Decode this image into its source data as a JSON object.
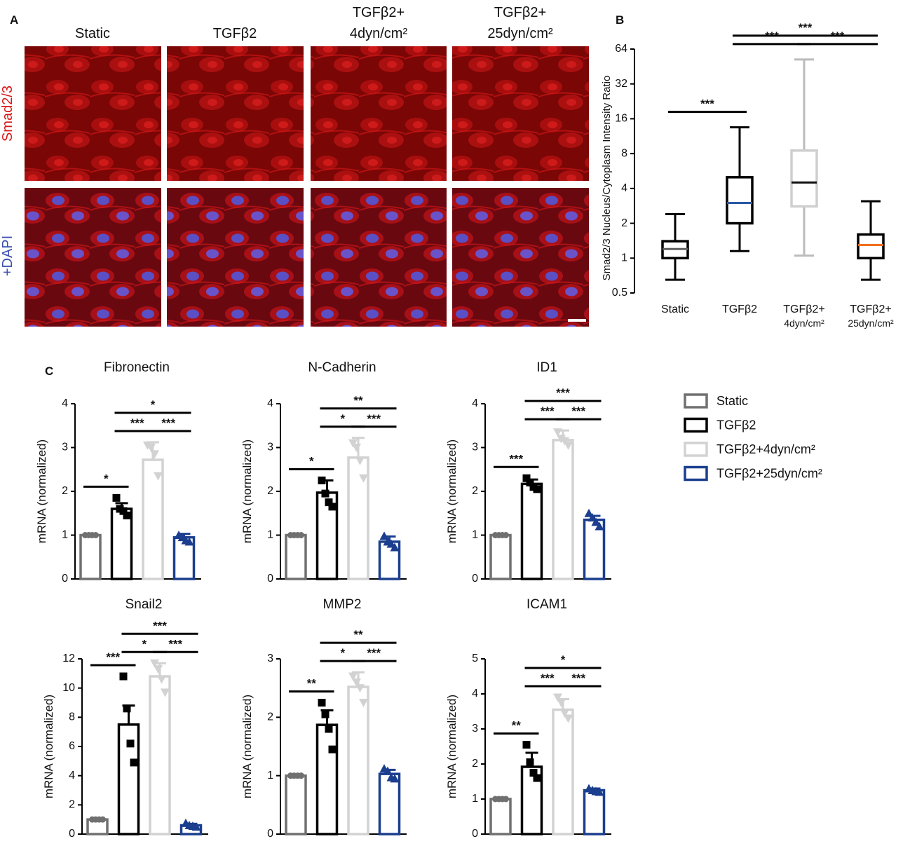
{
  "image_panel": {
    "label": "A",
    "columns": [
      [
        "Static"
      ],
      [
        "TGFβ2"
      ],
      [
        "TGFβ2+",
        "4dyn/cm²"
      ],
      [
        "TGFβ2+",
        "25dyn/cm²"
      ]
    ],
    "rows": [
      "Smad2/3",
      "+DAPI"
    ]
  },
  "legend": {
    "items": [
      {
        "name": "Static",
        "color": "#707070",
        "marker": "circle"
      },
      {
        "name": "TGFβ2",
        "color": "#000000",
        "marker": "square"
      },
      {
        "name": "TGFβ2+4dyn/cm²",
        "color": "#d2d2d2",
        "marker": "triangle-down"
      },
      {
        "name": "TGFβ2+25dyn/cm²",
        "color": "#1b3e8e",
        "marker": "triangle-up"
      }
    ]
  },
  "chart_data": [
    {
      "type": "box",
      "panel": "B",
      "y_label": "Smad2/3 Nucleus/Cytoplasm Intensity Ratio",
      "categories": [
        [
          "Static"
        ],
        [
          "TGFβ2"
        ],
        [
          "TGFβ2+",
          "4dyn/cm²"
        ],
        [
          "TGFβ2+",
          "25dyn/cm²"
        ]
      ],
      "colors": [
        "#606060",
        "#2a58a6",
        "#111111",
        "#f0701e"
      ],
      "stats": [
        {
          "min": 0.65,
          "q1": 1.0,
          "median": 1.2,
          "q3": 1.4,
          "max": 2.4
        },
        {
          "min": 1.15,
          "q1": 2.0,
          "median": 3.0,
          "q3": 5.0,
          "max": 13.5
        },
        {
          "min": 1.05,
          "q1": 2.8,
          "median": 4.5,
          "q3": 8.5,
          "max": 52
        },
        {
          "min": 0.65,
          "q1": 1.0,
          "median": 1.3,
          "q3": 1.6,
          "max": 3.1
        }
      ],
      "log_base": 2,
      "ylim": [
        0.5,
        64
      ],
      "yticks": [
        0.5,
        1,
        2,
        4,
        8,
        16,
        32,
        64
      ],
      "brackets": [
        {
          "between": [
            0,
            1
          ],
          "label": "***"
        },
        {
          "between": [
            1,
            2
          ],
          "label": "***"
        },
        {
          "between": [
            2,
            3
          ],
          "label": "***"
        },
        {
          "between": [
            1,
            3
          ],
          "label": "***"
        }
      ]
    },
    {
      "type": "bar",
      "panel": "C",
      "title": "Fibronectin",
      "y_label": "mRNA (normalized)",
      "values": [
        1,
        1.6,
        2.72,
        0.95
      ],
      "errors": [
        0,
        0.13,
        0.4,
        0.08
      ],
      "points": [
        [
          1,
          1,
          1,
          1
        ],
        [
          1.85,
          1.6,
          1.55,
          1.45
        ],
        [
          3.05,
          3.0,
          2.85,
          2.35
        ],
        [
          1.0,
          0.95,
          0.88,
          0.85
        ]
      ],
      "ylim": [
        0,
        4
      ],
      "yticks": [
        0,
        1,
        2,
        3,
        4
      ],
      "brackets": [
        {
          "between": [
            0,
            1
          ],
          "label": "*"
        },
        {
          "between": [
            1,
            2
          ],
          "label": "***"
        },
        {
          "between": [
            2,
            3
          ],
          "label": "***"
        },
        {
          "between": [
            1,
            3
          ],
          "label": "*"
        }
      ]
    },
    {
      "type": "bar",
      "title": "N-Cadherin",
      "y_label": "mRNA (normalized)",
      "values": [
        1,
        1.97,
        2.77,
        0.85
      ],
      "errors": [
        0,
        0.28,
        0.45,
        0.12
      ],
      "points": [
        [
          1,
          1,
          1,
          1
        ],
        [
          2.25,
          1.95,
          1.75,
          1.65
        ],
        [
          3.1,
          3.0,
          2.7,
          2.3
        ],
        [
          0.98,
          0.85,
          0.8,
          0.72
        ]
      ],
      "ylim": [
        0,
        4
      ],
      "yticks": [
        0,
        1,
        2,
        3,
        4
      ],
      "brackets": [
        {
          "between": [
            0,
            1
          ],
          "label": "*"
        },
        {
          "between": [
            1,
            2
          ],
          "label": "*"
        },
        {
          "between": [
            2,
            3
          ],
          "label": "***"
        },
        {
          "between": [
            1,
            3
          ],
          "label": "**"
        }
      ]
    },
    {
      "type": "bar",
      "title": "ID1",
      "y_label": "mRNA (normalized)",
      "values": [
        1,
        2.17,
        3.17,
        1.35
      ],
      "errors": [
        0,
        0.1,
        0.22,
        0.09
      ],
      "points": [
        [
          1,
          1,
          1,
          1
        ],
        [
          2.3,
          2.2,
          2.1,
          2.05
        ],
        [
          3.35,
          3.2,
          3.15,
          3.05
        ],
        [
          1.5,
          1.4,
          1.3,
          1.2
        ]
      ],
      "ylim": [
        0,
        4
      ],
      "yticks": [
        0,
        1,
        2,
        3,
        4
      ],
      "brackets": [
        {
          "between": [
            0,
            1
          ],
          "label": "***"
        },
        {
          "between": [
            1,
            2
          ],
          "label": "***"
        },
        {
          "between": [
            2,
            3
          ],
          "label": "***"
        },
        {
          "between": [
            1,
            3
          ],
          "label": "***"
        }
      ]
    },
    {
      "type": "bar",
      "title": "Snail2",
      "y_label": "mRNA (normalized)",
      "values": [
        1,
        7.5,
        10.8,
        0.6
      ],
      "errors": [
        0,
        1.3,
        0.9,
        0.1
      ],
      "points": [
        [
          1,
          1,
          1,
          1
        ],
        [
          10.8,
          8.6,
          6.2,
          4.9
        ],
        [
          11.7,
          11.3,
          10.6,
          9.7
        ],
        [
          0.75,
          0.6,
          0.55,
          0.5
        ]
      ],
      "ylim": [
        0,
        12
      ],
      "yticks": [
        0,
        2,
        4,
        6,
        8,
        10,
        12
      ],
      "brackets": [
        {
          "between": [
            0,
            1
          ],
          "label": "***"
        },
        {
          "between": [
            1,
            2
          ],
          "label": "*"
        },
        {
          "between": [
            2,
            3
          ],
          "label": "***"
        },
        {
          "between": [
            1,
            3
          ],
          "label": "***"
        }
      ]
    },
    {
      "type": "bar",
      "title": "MMP2",
      "y_label": "mRNA (normalized)",
      "values": [
        1,
        1.87,
        2.52,
        1.03
      ],
      "errors": [
        0,
        0.25,
        0.25,
        0.07
      ],
      "points": [
        [
          1,
          1,
          1,
          1
        ],
        [
          2.25,
          2.05,
          1.8,
          1.45
        ],
        [
          2.7,
          2.6,
          2.5,
          2.25
        ],
        [
          1.12,
          1.08,
          0.97,
          0.95
        ]
      ],
      "ylim": [
        0,
        3
      ],
      "yticks": [
        0,
        1,
        2,
        3
      ],
      "brackets": [
        {
          "between": [
            0,
            1
          ],
          "label": "**"
        },
        {
          "between": [
            1,
            2
          ],
          "label": "*"
        },
        {
          "between": [
            2,
            3
          ],
          "label": "***"
        },
        {
          "between": [
            1,
            3
          ],
          "label": "**"
        }
      ]
    },
    {
      "type": "bar",
      "title": "ICAM1",
      "y_label": "mRNA (normalized)",
      "values": [
        1,
        1.92,
        3.55,
        1.25
      ],
      "errors": [
        0,
        0.4,
        0.3,
        0.05
      ],
      "points": [
        [
          1,
          1,
          1,
          1
        ],
        [
          2.55,
          2.05,
          1.75,
          1.6
        ],
        [
          3.9,
          3.75,
          3.45,
          3.3
        ],
        [
          1.3,
          1.25,
          1.22,
          1.2
        ]
      ],
      "ylim": [
        0,
        5
      ],
      "yticks": [
        0,
        1,
        2,
        3,
        4,
        5
      ],
      "brackets": [
        {
          "between": [
            0,
            1
          ],
          "label": "**"
        },
        {
          "between": [
            1,
            2
          ],
          "label": "***"
        },
        {
          "between": [
            2,
            3
          ],
          "label": "***"
        },
        {
          "between": [
            1,
            3
          ],
          "label": "*"
        }
      ]
    }
  ]
}
